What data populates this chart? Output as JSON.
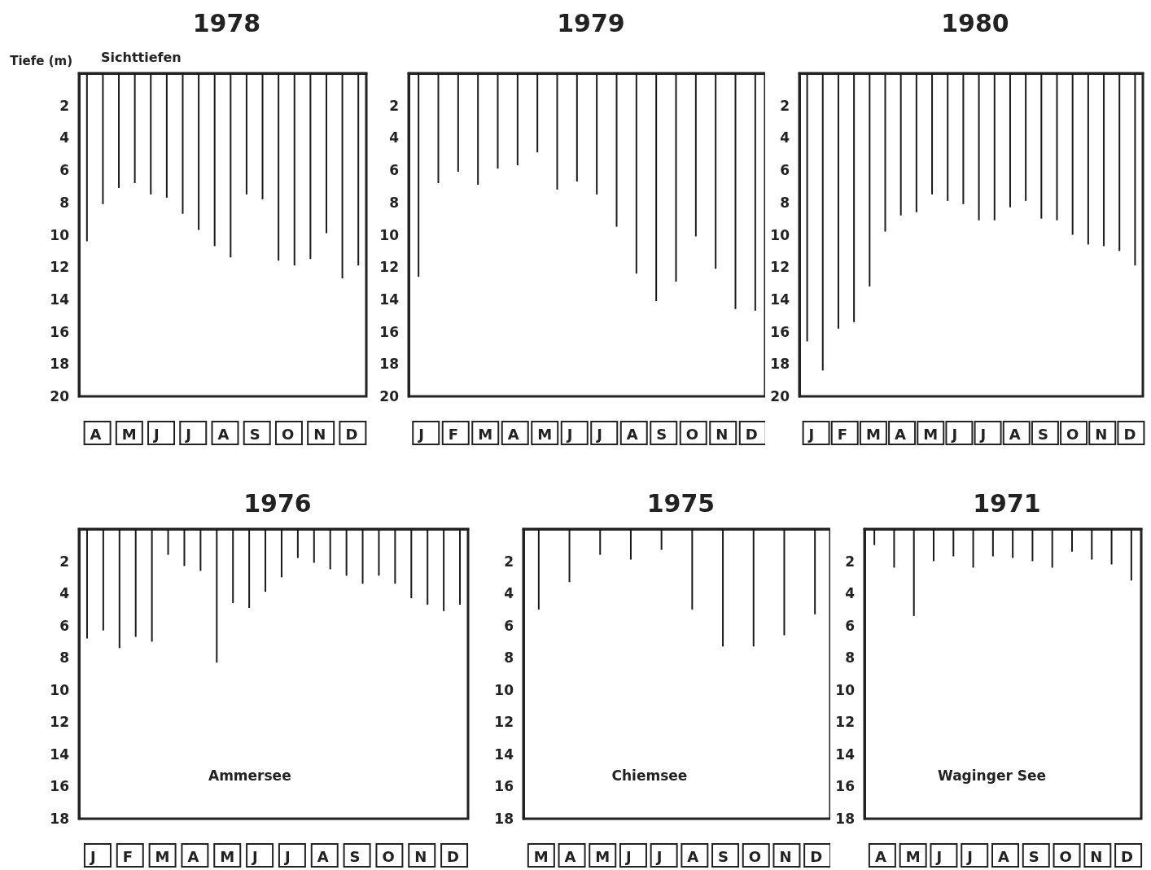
{
  "chart_data": [
    {
      "type": "bar",
      "title": "1978",
      "subtitle": "Sichttiefen",
      "ylabel": "Tiefe (m)",
      "annotations": [
        "A",
        "M",
        "J",
        "J",
        "A",
        "S",
        "O",
        "N",
        "D"
      ],
      "color": "#1a1a1a",
      "grid": false,
      "ylim": [
        20,
        0
      ],
      "yticks": [
        2,
        4,
        6,
        8,
        10,
        12,
        14,
        16,
        18,
        20
      ],
      "categories": [
        null,
        null,
        null,
        null,
        null,
        null,
        null,
        null,
        null,
        null,
        null,
        null,
        null,
        null,
        null,
        null,
        null,
        null
      ],
      "values": [
        10.4,
        8.1,
        7.1,
        6.8,
        7.5,
        7.7,
        8.7,
        9.7,
        10.7,
        11.4,
        7.5,
        7.8,
        11.6,
        11.9,
        11.5,
        9.9,
        12.7,
        11.9
      ]
    },
    {
      "type": "bar",
      "title": "1979",
      "annotations": [
        "J",
        "F",
        "M",
        "A",
        "M",
        "J",
        "J",
        "A",
        "S",
        "O",
        "N",
        "D"
      ],
      "color": "#1a1a1a",
      "grid": false,
      "ylim": [
        20,
        0
      ],
      "yticks": [
        2,
        4,
        6,
        8,
        10,
        12,
        14,
        16,
        18,
        20
      ],
      "categories": [
        null,
        null,
        null,
        null,
        null,
        null,
        null,
        null,
        null,
        null,
        null,
        null,
        null,
        null,
        null,
        null,
        null,
        null
      ],
      "values": [
        12.6,
        6.8,
        6.1,
        6.9,
        5.9,
        5.7,
        4.9,
        7.2,
        6.7,
        7.5,
        9.5,
        12.4,
        14.1,
        12.9,
        10.1,
        12.1,
        14.6,
        14.7
      ]
    },
    {
      "type": "bar",
      "title": "1980",
      "annotations": [
        "J",
        "F",
        "M",
        "A",
        "M",
        "J",
        "J",
        "A",
        "S",
        "O",
        "N",
        "D"
      ],
      "color": "#1a1a1a",
      "grid": false,
      "ylim": [
        20,
        0
      ],
      "yticks": [
        2,
        4,
        6,
        8,
        10,
        12,
        14,
        16,
        18,
        20
      ],
      "categories": [
        null,
        null,
        null,
        null,
        null,
        null,
        null,
        null,
        null,
        null,
        null,
        null,
        null,
        null,
        null,
        null,
        null,
        null,
        null,
        null,
        null,
        null
      ],
      "values": [
        16.6,
        18.4,
        15.8,
        15.4,
        13.2,
        9.8,
        8.8,
        8.6,
        7.5,
        7.9,
        8.1,
        9.1,
        9.1,
        8.3,
        7.9,
        9.0,
        9.1,
        10.0,
        10.6,
        10.7,
        11.0,
        11.9
      ]
    },
    {
      "type": "bar",
      "title": "1976",
      "subtitle": "Ammersee",
      "annotations": [
        "J",
        "F",
        "M",
        "A",
        "M",
        "J",
        "J",
        "A",
        "S",
        "O",
        "N",
        "D"
      ],
      "color": "#1a1a1a",
      "grid": false,
      "ylim": [
        18,
        0
      ],
      "yticks": [
        2,
        4,
        6,
        8,
        10,
        12,
        14,
        16,
        18
      ],
      "categories": [
        null,
        null,
        null,
        null,
        null,
        null,
        null,
        null,
        null,
        null,
        null,
        null,
        null,
        null,
        null,
        null,
        null,
        null,
        null,
        null,
        null,
        null,
        null,
        null
      ],
      "values": [
        6.8,
        6.3,
        7.4,
        6.7,
        7.0,
        1.6,
        2.3,
        2.6,
        8.3,
        4.6,
        4.9,
        3.9,
        3.0,
        1.8,
        2.1,
        2.5,
        2.9,
        3.4,
        2.9,
        3.4,
        4.3,
        4.7,
        5.1,
        4.7
      ]
    },
    {
      "type": "bar",
      "title": "1975",
      "subtitle": "Chiemsee",
      "annotations": [
        "M",
        "A",
        "M",
        "J",
        "J",
        "A",
        "S",
        "O",
        "N",
        "D"
      ],
      "color": "#1a1a1a",
      "grid": false,
      "ylim": [
        18,
        0
      ],
      "yticks": [
        2,
        4,
        6,
        8,
        10,
        12,
        14,
        16,
        18
      ],
      "categories": [
        null,
        null,
        null,
        null,
        null,
        null,
        null,
        null,
        null,
        null
      ],
      "values": [
        5.0,
        3.3,
        1.6,
        1.9,
        1.3,
        5.0,
        7.3,
        7.3,
        6.6,
        5.3
      ]
    },
    {
      "type": "bar",
      "title": "1971",
      "subtitle": "Waginger See",
      "annotations": [
        "A",
        "M",
        "J",
        "J",
        "A",
        "S",
        "O",
        "N",
        "D"
      ],
      "color": "#1a1a1a",
      "grid": false,
      "ylim": [
        18,
        0
      ],
      "yticks": [
        2,
        4,
        6,
        8,
        10,
        12,
        14,
        16,
        18
      ],
      "categories": [
        null,
        null,
        null,
        null,
        null,
        null,
        null,
        null,
        null,
        null,
        null,
        null,
        null,
        null
      ],
      "values": [
        1.0,
        2.4,
        5.4,
        2.0,
        1.7,
        2.4,
        1.7,
        1.8,
        2.0,
        2.4,
        1.4,
        1.9,
        2.2,
        3.2
      ]
    }
  ]
}
